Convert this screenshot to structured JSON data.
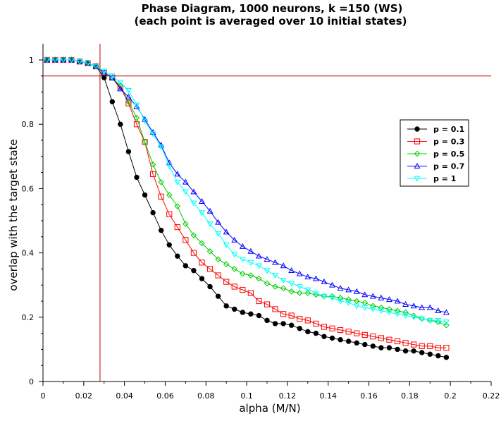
{
  "chart_data": {
    "type": "line",
    "title": "Phase Diagram, 1000 neurons, k =150 (WS)",
    "subtitle": "(each point is averaged over 10 initial states)",
    "xlabel": "alpha (M/N)",
    "ylabel": "overlap with the target state",
    "xlim": [
      0,
      0.22
    ],
    "ylim": [
      0,
      1.05
    ],
    "x_ticks": [
      "0",
      "0.02",
      "0.04",
      "0.06",
      "0.08",
      "0.1",
      "0.12",
      "0.14",
      "0.16",
      "0.18",
      "0.2",
      "0.22"
    ],
    "y_ticks": [
      "0",
      "0.2",
      "0.4",
      "0.6",
      "0.8",
      "1"
    ],
    "grid": false,
    "legend_position": "right",
    "reference_lines": {
      "vertical_x": 0.028,
      "horizontal_y": 0.95,
      "color": "#c00000"
    },
    "x": [
      0.002,
      0.006,
      0.01,
      0.014,
      0.018,
      0.022,
      0.026,
      0.03,
      0.034,
      0.038,
      0.042,
      0.046,
      0.05,
      0.054,
      0.058,
      0.062,
      0.066,
      0.07,
      0.074,
      0.078,
      0.082,
      0.086,
      0.09,
      0.094,
      0.098,
      0.102,
      0.106,
      0.11,
      0.114,
      0.118,
      0.122,
      0.126,
      0.13,
      0.134,
      0.138,
      0.142,
      0.146,
      0.15,
      0.154,
      0.158,
      0.162,
      0.166,
      0.17,
      0.174,
      0.178,
      0.182,
      0.186,
      0.19,
      0.194,
      0.198
    ],
    "series": [
      {
        "name": "p = 0.1",
        "color": "#000000",
        "marker": "circle",
        "values": [
          1.0,
          1.0,
          1.0,
          1.0,
          0.995,
          0.99,
          0.98,
          0.945,
          0.87,
          0.8,
          0.715,
          0.635,
          0.58,
          0.525,
          0.47,
          0.425,
          0.39,
          0.36,
          0.345,
          0.32,
          0.295,
          0.265,
          0.235,
          0.225,
          0.215,
          0.21,
          0.205,
          0.19,
          0.18,
          0.18,
          0.175,
          0.165,
          0.155,
          0.15,
          0.14,
          0.135,
          0.13,
          0.125,
          0.12,
          0.115,
          0.11,
          0.105,
          0.105,
          0.1,
          0.095,
          0.095,
          0.09,
          0.085,
          0.08,
          0.075
        ]
      },
      {
        "name": "p = 0.3",
        "color": "#ff0000",
        "marker": "square",
        "values": [
          1.0,
          1.0,
          1.0,
          1.0,
          0.995,
          0.99,
          0.98,
          0.96,
          0.945,
          0.915,
          0.865,
          0.8,
          0.745,
          0.645,
          0.575,
          0.52,
          0.48,
          0.44,
          0.4,
          0.37,
          0.35,
          0.33,
          0.31,
          0.295,
          0.285,
          0.275,
          0.25,
          0.24,
          0.225,
          0.21,
          0.205,
          0.195,
          0.19,
          0.18,
          0.17,
          0.165,
          0.16,
          0.155,
          0.15,
          0.145,
          0.14,
          0.135,
          0.13,
          0.125,
          0.12,
          0.115,
          0.11,
          0.11,
          0.105,
          0.105
        ]
      },
      {
        "name": "p = 0.5",
        "color": "#00cc00",
        "marker": "diamond",
        "values": [
          1.0,
          1.0,
          1.0,
          1.0,
          0.995,
          0.99,
          0.98,
          0.96,
          0.945,
          0.92,
          0.87,
          0.82,
          0.745,
          0.675,
          0.62,
          0.58,
          0.545,
          0.49,
          0.455,
          0.43,
          0.405,
          0.38,
          0.365,
          0.35,
          0.335,
          0.33,
          0.32,
          0.305,
          0.295,
          0.29,
          0.28,
          0.275,
          0.275,
          0.27,
          0.265,
          0.265,
          0.26,
          0.255,
          0.25,
          0.245,
          0.235,
          0.23,
          0.225,
          0.22,
          0.215,
          0.205,
          0.195,
          0.19,
          0.185,
          0.175
        ]
      },
      {
        "name": "p = 0.7",
        "color": "#0000ff",
        "marker": "triangle-up",
        "values": [
          1.0,
          1.0,
          1.0,
          1.0,
          0.995,
          0.99,
          0.98,
          0.96,
          0.945,
          0.91,
          0.885,
          0.855,
          0.815,
          0.775,
          0.735,
          0.68,
          0.645,
          0.62,
          0.59,
          0.56,
          0.53,
          0.495,
          0.465,
          0.44,
          0.42,
          0.405,
          0.39,
          0.38,
          0.37,
          0.36,
          0.345,
          0.335,
          0.325,
          0.32,
          0.31,
          0.3,
          0.29,
          0.285,
          0.28,
          0.27,
          0.265,
          0.26,
          0.255,
          0.25,
          0.24,
          0.235,
          0.23,
          0.23,
          0.22,
          0.215
        ]
      },
      {
        "name": "p = 1",
        "color": "#00ffff",
        "marker": "triangle-down",
        "values": [
          1.0,
          1.0,
          1.0,
          1.0,
          0.995,
          0.99,
          0.98,
          0.965,
          0.95,
          0.93,
          0.905,
          0.86,
          0.81,
          0.77,
          0.73,
          0.67,
          0.62,
          0.59,
          0.555,
          0.525,
          0.49,
          0.46,
          0.425,
          0.395,
          0.38,
          0.37,
          0.36,
          0.345,
          0.33,
          0.315,
          0.305,
          0.295,
          0.285,
          0.275,
          0.265,
          0.26,
          0.25,
          0.245,
          0.235,
          0.23,
          0.225,
          0.22,
          0.215,
          0.21,
          0.205,
          0.2,
          0.195,
          0.19,
          0.19,
          0.185
        ]
      }
    ]
  }
}
